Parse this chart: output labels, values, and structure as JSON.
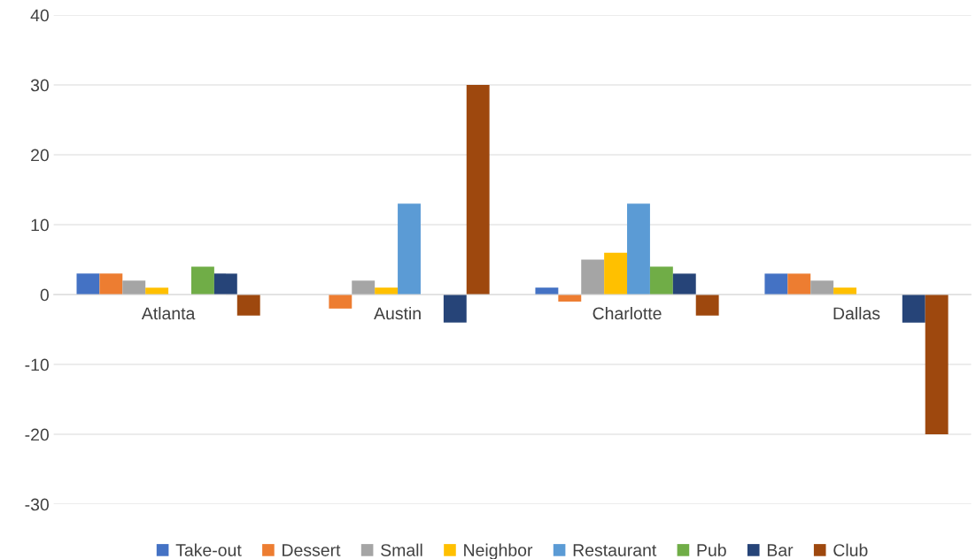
{
  "chart_data": {
    "type": "bar",
    "categories": [
      "Atlanta",
      "Austin",
      "Charlotte",
      "Dallas"
    ],
    "series": [
      {
        "name": "Take-out",
        "color": "#4472c4",
        "values": [
          3,
          0,
          1,
          3
        ]
      },
      {
        "name": "Dessert",
        "color": "#ed7d31",
        "values": [
          3,
          -2,
          -1,
          3
        ]
      },
      {
        "name": "Small",
        "color": "#a5a5a5",
        "values": [
          2,
          2,
          5,
          2
        ]
      },
      {
        "name": "Neighbor",
        "color": "#ffc000",
        "values": [
          1,
          1,
          6,
          1
        ]
      },
      {
        "name": "Restaurant",
        "color": "#5b9bd5",
        "values": [
          0,
          13,
          13,
          0
        ]
      },
      {
        "name": "Pub",
        "color": "#70ad47",
        "values": [
          4,
          0,
          4,
          0
        ]
      },
      {
        "name": "Bar",
        "color": "#264478",
        "values": [
          3,
          -4,
          3,
          -4
        ]
      },
      {
        "name": "Club",
        "color": "#9e480e",
        "values": [
          -3,
          30,
          -3,
          -20
        ]
      }
    ],
    "ylim": [
      -30,
      40
    ],
    "yticks": [
      -30,
      -20,
      -10,
      0,
      10,
      20,
      30,
      40
    ],
    "grid": "y",
    "legend": "bottom"
  }
}
